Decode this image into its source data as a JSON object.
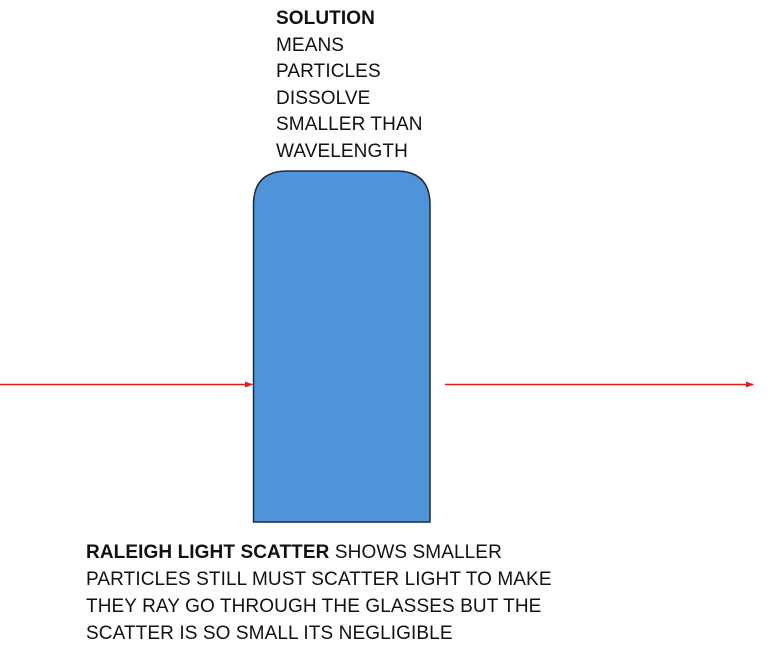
{
  "top_label": {
    "title": "SOLUTION",
    "lines": [
      "MEANS",
      "PARTICLES",
      "DISSOLVE",
      "SMALLER THAN",
      "WAVELENGTH"
    ]
  },
  "bottom_caption": {
    "title": "RALEIGH LIGHT SCATTER",
    "line1_rest": " SHOWS SMALLER",
    "lines": [
      "PARTICLES STILL MUST SCATTER LIGHT TO MAKE",
      "THEY RAY GO THROUGH THE GLASSES BUT THE",
      "SCATTER IS SO SMALL ITS NEGLIGIBLE"
    ]
  },
  "colors": {
    "container_fill": "#4f93d9",
    "container_stroke": "#1e2a3a",
    "ray": "#e01b1b"
  }
}
